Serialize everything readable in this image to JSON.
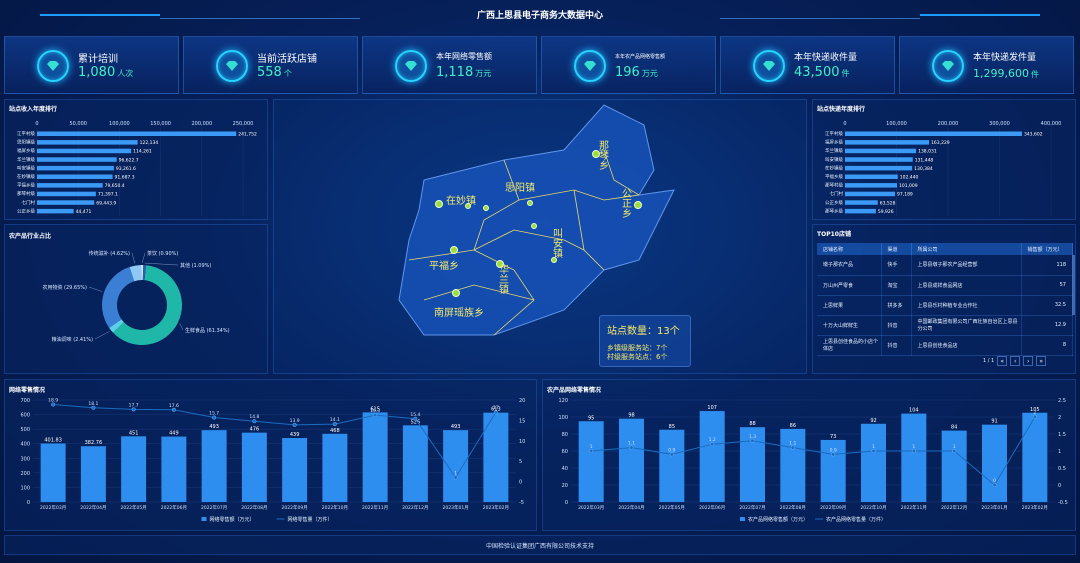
{
  "header": {
    "title": "广西上思县电子商务大数据中心"
  },
  "kpis": [
    {
      "label": "累计培训",
      "value": "1,080",
      "unit": "人次"
    },
    {
      "label": "当前活跃店铺",
      "value": "558",
      "unit": "个"
    },
    {
      "label": "本年网络零售额",
      "value": "1,118",
      "unit": "万元"
    },
    {
      "label": "本年农产品网络零售额",
      "value": "196",
      "unit": "万元"
    },
    {
      "label": "本年快递收件量",
      "value": "43,500",
      "unit": "件"
    },
    {
      "label": "本年快递发件量",
      "value": "1,299,600",
      "unit": "件"
    }
  ],
  "income_rank": {
    "title": "站点收入年度排行",
    "ticks": [
      "0",
      "50,000",
      "100,000",
      "150,000",
      "200,000",
      "250,000"
    ],
    "max": 250000,
    "items": [
      {
        "name": "江平村级",
        "value": 241752,
        "label": "241,752"
      },
      {
        "name": "思阳镇级",
        "value": 122134,
        "label": "122,134"
      },
      {
        "name": "福屏乡级",
        "value": 114261,
        "label": "114,261"
      },
      {
        "name": "华兰镇级",
        "value": 96622.7,
        "label": "96,622.7"
      },
      {
        "name": "叫安镇级",
        "value": 93261.6,
        "label": "93,261.6"
      },
      {
        "name": "在妙镇级",
        "value": 91687.3,
        "label": "91,687.3"
      },
      {
        "name": "平福乡级",
        "value": 79650.4,
        "label": "79,650.4"
      },
      {
        "name": "那琴村级",
        "value": 71397.1,
        "label": "71,397.1"
      },
      {
        "name": "七门村",
        "value": 69443.9,
        "label": "69,443.9"
      },
      {
        "name": "公正乡级",
        "value": 44471,
        "label": "44,471"
      }
    ]
  },
  "express_rank": {
    "title": "站点快递年度排行",
    "ticks": [
      "0",
      "100,000",
      "200,000",
      "300,000",
      "400,000"
    ],
    "max": 400000,
    "items": [
      {
        "name": "江平村级",
        "value": 343602,
        "label": "343,602"
      },
      {
        "name": "福屏乡级",
        "value": 163229,
        "label": "163,229"
      },
      {
        "name": "华兰镇级",
        "value": 138031,
        "label": "138,031"
      },
      {
        "name": "叫安镇级",
        "value": 131448,
        "label": "131,448"
      },
      {
        "name": "在妙镇级",
        "value": 130384,
        "label": "130,384"
      },
      {
        "name": "平福乡级",
        "value": 102440,
        "label": "102,440"
      },
      {
        "name": "那琴村级",
        "value": 101009,
        "label": "101,009"
      },
      {
        "name": "七门村",
        "value": 97189,
        "label": "97,189"
      },
      {
        "name": "公正乡级",
        "value": 63528,
        "label": "63,528"
      },
      {
        "name": "那琴乡级",
        "value": 59926,
        "label": "59,926"
      }
    ]
  },
  "category_share": {
    "title": "农产品行业占比",
    "segments": [
      {
        "name": "生鲜食品",
        "pct": 61.34,
        "label": "生鲜食品 (61.34%)",
        "color": "#1fb8a8"
      },
      {
        "name": "粮油调味",
        "pct": 2.41,
        "label": "粮油调味 (2.41%)",
        "color": "#5bd0e8"
      },
      {
        "name": "农用物资",
        "pct": 29.65,
        "label": "农用物资 (29.65%)",
        "color": "#3a7fd4"
      },
      {
        "name": "传统滋补",
        "pct": 4.62,
        "label": "传统滋补 (4.62%)",
        "color": "#8fc8f5"
      },
      {
        "name": "茶饮",
        "pct": 0.9,
        "label": "茶饮 (0.90%)",
        "color": "#cfe6ff"
      },
      {
        "name": "其他",
        "pct": 1.09,
        "label": "其他 (1.09%)",
        "color": "#2a5fb0"
      }
    ]
  },
  "map": {
    "towns": [
      {
        "name": "那琴乡"
      },
      {
        "name": "在妙镇"
      },
      {
        "name": "思阳镇"
      },
      {
        "name": "公正乡"
      },
      {
        "name": "叫安镇"
      },
      {
        "name": "平福乡"
      },
      {
        "name": "华兰镇"
      },
      {
        "name": "南屏瑶族乡"
      }
    ],
    "station_count": "站点数量：13个",
    "town_stations": "乡镇级服务站：7个",
    "village_stations": "村级服务站点：6个"
  },
  "top10": {
    "title": "TOP10店铺",
    "headers": [
      "店铺名称",
      "渠道",
      "所属公司",
      "销售额（万元）"
    ],
    "rows": [
      {
        "name": "墩子那农产品",
        "channel": "快手",
        "company": "上思县墩子那农产品经营部",
        "sales": "118"
      },
      {
        "name": "万山州严零食",
        "channel": "淘宝",
        "company": "上思县成祥食品网店",
        "sales": "57"
      },
      {
        "name": "上思鲜果",
        "channel": "拼多多",
        "company": "上思县乐村种植专业合作社",
        "sales": "32.5"
      },
      {
        "name": "十万大山鲜鲜生",
        "channel": "抖音",
        "company": "中国邮政集团有限公司广西壮族自治区上思县分公司",
        "sales": "12.9"
      },
      {
        "name": "上思县创佳食品的小店个体店",
        "channel": "抖音",
        "company": "上思县创佳食品店",
        "sales": "8"
      }
    ],
    "pager": "1 / 1"
  },
  "colors": {
    "bar": "#2e8ef0",
    "line": "#1a6cc0",
    "accent": "#3ff0c8"
  },
  "chart_data": [
    {
      "type": "bar",
      "title": "网络零售情况",
      "categories": [
        "2022年03月",
        "2022年04月",
        "2022年05月",
        "2022年06月",
        "2022年07月",
        "2022年08月",
        "2022年09月",
        "2022年10月",
        "2022年11月",
        "2022年12月",
        "2023年01月",
        "2023年02月"
      ],
      "series": [
        {
          "name": "网络零售额（万元）",
          "type": "bar",
          "axis": "left",
          "values": [
            401.83,
            382.76,
            451,
            449,
            493,
            476,
            439,
            468,
            615,
            526,
            493,
            613
          ],
          "labels": [
            "401.83",
            "382.76",
            "451",
            "449",
            "493",
            "476",
            "439",
            "468",
            "615",
            "526",
            "493",
            "613"
          ]
        },
        {
          "name": "网络零售量（万件）",
          "type": "line",
          "axis": "right",
          "values": [
            18.9,
            18.1,
            17.7,
            17.6,
            15.7,
            14.8,
            13.9,
            14.1,
            16.3,
            15.4,
            1,
            17
          ],
          "labels": [
            "18.9",
            "18.1",
            "17.7",
            "17.6",
            "15.7",
            "14.8",
            "13.9",
            "14.1",
            "16.3",
            "15.4",
            "1",
            "17"
          ]
        }
      ],
      "yleft": {
        "min": 0,
        "max": 700,
        "ticks": [
          0,
          100,
          200,
          300,
          400,
          500,
          600,
          700
        ]
      },
      "yright": {
        "min": -5,
        "max": 20,
        "ticks": [
          -5,
          0,
          5,
          10,
          15,
          20
        ]
      },
      "grid": true,
      "legend": "bottom"
    },
    {
      "type": "bar",
      "title": "农产品网络零售情况",
      "categories": [
        "2022年03月",
        "2022年04月",
        "2022年05月",
        "2022年06月",
        "2022年07月",
        "2022年08月",
        "2022年09月",
        "2022年10月",
        "2022年11月",
        "2022年12月",
        "2023年01月",
        "2023年02月"
      ],
      "series": [
        {
          "name": "农产品网络零售额（万元）",
          "type": "bar",
          "axis": "left",
          "values": [
            95,
            98,
            85,
            107,
            88,
            86,
            73,
            92,
            104,
            84,
            91,
            105
          ],
          "labels": [
            "95",
            "98",
            "85",
            "107",
            "88",
            "86",
            "73",
            "92",
            "104",
            "84",
            "91",
            "105"
          ]
        },
        {
          "name": "农产品网络零售量（万件）",
          "type": "line",
          "axis": "right",
          "values": [
            1,
            1.1,
            0.9,
            1.2,
            1.3,
            1.1,
            0.9,
            1,
            1,
            1,
            0,
            2
          ],
          "labels": [
            "1",
            "1.1",
            "0.9",
            "1.2",
            "1.3",
            "1.1",
            "0.9",
            "1",
            "1",
            "1",
            "0",
            "2"
          ]
        }
      ],
      "yleft": {
        "min": 0,
        "max": 120,
        "ticks": [
          0,
          20,
          40,
          60,
          80,
          100,
          120
        ]
      },
      "yright": {
        "min": -0.5,
        "max": 2.5,
        "ticks": [
          -0.5,
          0,
          0.5,
          1,
          1.5,
          2,
          2.5
        ]
      },
      "grid": true,
      "legend": "bottom"
    }
  ],
  "footer": {
    "text": "中国检验认证集团广西有限公司技术支持"
  }
}
